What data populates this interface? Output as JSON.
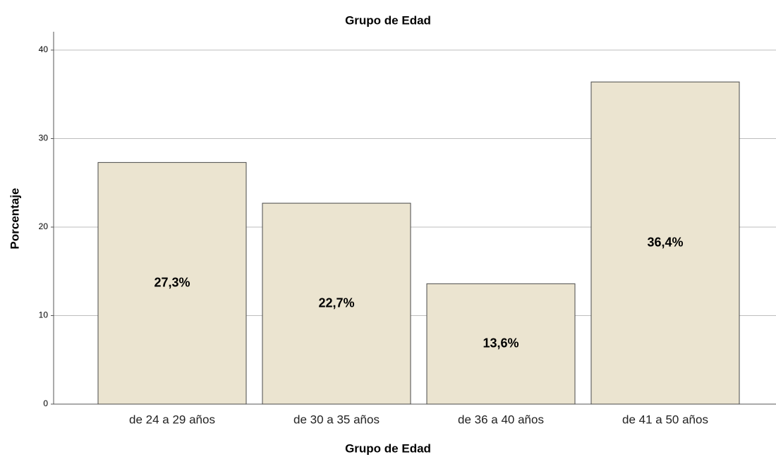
{
  "chart_data": {
    "type": "bar",
    "title": "Grupo de Edad",
    "x_label": "Grupo de Edad",
    "y_label": "Porcentaje",
    "categories": [
      "de 24 a 29 años",
      "de 30 a 35 años",
      "de 36 a 40 años",
      "de 41 a 50 años"
    ],
    "values": [
      27.3,
      22.7,
      13.6,
      36.4
    ],
    "value_labels": [
      "27,3%",
      "22,7%",
      "13,6%",
      "36,4%"
    ],
    "color": "#ebe4d0",
    "ylim": [
      0,
      40
    ],
    "yticks": [
      0,
      10,
      20,
      30,
      40
    ],
    "grid": true
  }
}
